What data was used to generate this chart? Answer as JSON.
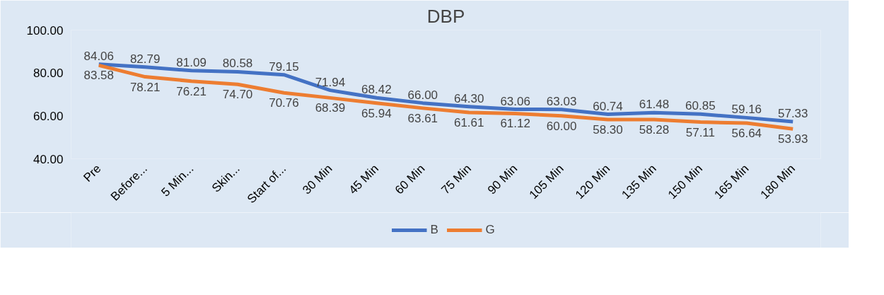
{
  "chart_data": {
    "type": "line",
    "title": "DBP",
    "categories": [
      "Pre",
      "Before...",
      "5 Min...",
      "Skin...",
      "Start of...",
      "30 Min",
      "45 Min",
      "60 Min",
      "75 Min",
      "90 Min",
      "105 Min",
      "120 Min",
      "135 Min",
      "150 Min",
      "165 Min",
      "180 Min"
    ],
    "series": [
      {
        "name": "B",
        "color": "#4472c4",
        "values": [
          84.06,
          82.79,
          81.09,
          80.58,
          79.15,
          71.94,
          68.42,
          66.0,
          64.3,
          63.06,
          63.03,
          60.74,
          61.48,
          60.85,
          59.16,
          57.33
        ],
        "value_labels": [
          "84.06",
          "82.79",
          "81.09",
          "80.58",
          "79.15",
          "71.94",
          "68.42",
          "66.00",
          "64.30",
          "63.06",
          "63.03",
          "60.74",
          "61.48",
          "60.85",
          "59.16",
          "57.33"
        ]
      },
      {
        "name": "G",
        "color": "#ed7d31",
        "values": [
          83.58,
          78.21,
          76.21,
          74.7,
          70.76,
          68.39,
          65.94,
          63.61,
          61.61,
          61.12,
          60.0,
          58.3,
          58.28,
          57.11,
          56.64,
          53.93
        ],
        "value_labels": [
          "83.58",
          "78.21",
          "76.21",
          "74.70",
          "70.76",
          "68.39",
          "65.94",
          "63.61",
          "61.61",
          "61.12",
          "60.00",
          "58.30",
          "58.28",
          "57.11",
          "56.64",
          "53.93"
        ]
      }
    ],
    "ylim": [
      40,
      100
    ],
    "yticks": [
      {
        "value": 40,
        "label": "40.00"
      },
      {
        "value": 60,
        "label": "60.00"
      },
      {
        "value": 80,
        "label": "80.00"
      },
      {
        "value": 100,
        "label": "100.00"
      }
    ],
    "grid": false,
    "legend": "bottom",
    "marker": "none",
    "line_style": "solid"
  }
}
